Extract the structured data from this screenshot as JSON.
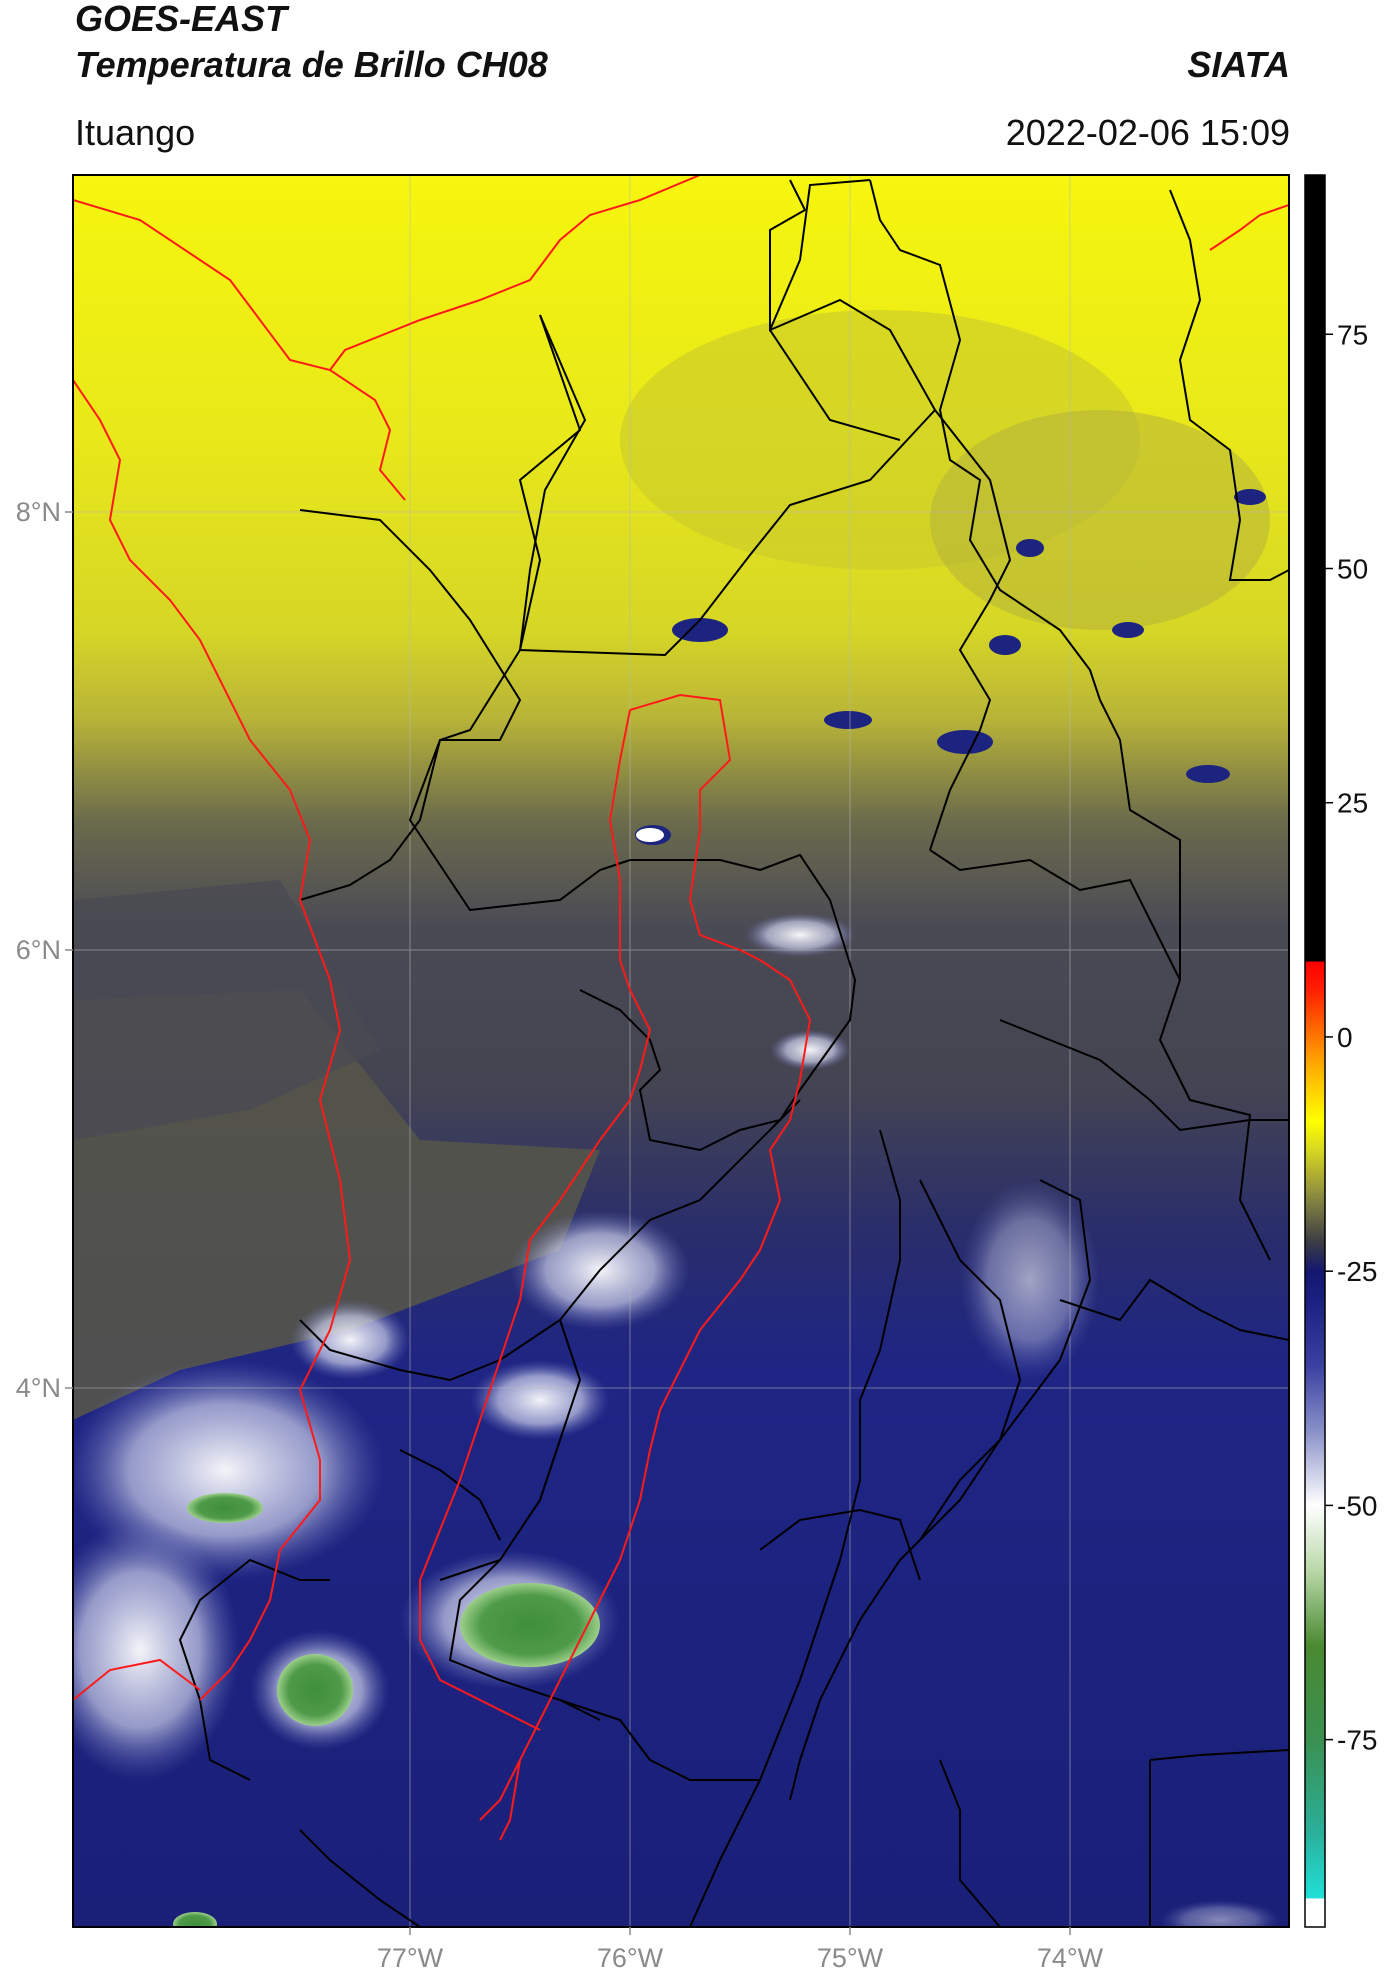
{
  "header": {
    "satellite": "GOES-EAST",
    "product": "Temperatura de Brillo CH08",
    "organization": "SIATA",
    "region": "Ituango",
    "timestamp": "2022-02-06 15:09"
  },
  "map": {
    "lon_ticks": [
      {
        "value": -77,
        "label": "77°W"
      },
      {
        "value": -76,
        "label": "76°W"
      },
      {
        "value": -75,
        "label": "75°W"
      },
      {
        "value": -74,
        "label": "74°W"
      }
    ],
    "lat_ticks": [
      {
        "value": 8,
        "label": "8°N"
      },
      {
        "value": 6,
        "label": "6°N"
      },
      {
        "value": 4,
        "label": "4°N"
      }
    ],
    "colors": {
      "land_yellow": "#e8e81a",
      "gray": "#4a4a55",
      "navy": "#1c2480",
      "boundary_black": "#000000",
      "boundary_red": "#ff1a1a"
    }
  },
  "colorbar": {
    "ticks": [
      {
        "value": 75,
        "label": "75"
      },
      {
        "value": 50,
        "label": "50"
      },
      {
        "value": 25,
        "label": "25"
      },
      {
        "value": 0,
        "label": "0"
      },
      {
        "value": -25,
        "label": "-25"
      },
      {
        "value": -50,
        "label": "-50"
      },
      {
        "value": -75,
        "label": "-75"
      }
    ],
    "stops": [
      {
        "value": -95,
        "color": "#ffffff"
      },
      {
        "value": -92,
        "color": "#ffffff"
      },
      {
        "value": -91.9,
        "color": "#20e0d8"
      },
      {
        "value": -85,
        "color": "#2ab09a"
      },
      {
        "value": -75,
        "color": "#3a9050"
      },
      {
        "value": -65,
        "color": "#4a8a30"
      },
      {
        "value": -57,
        "color": "#b8d8a8"
      },
      {
        "value": -50,
        "color": "#ffffff"
      },
      {
        "value": -42,
        "color": "#8890c8"
      },
      {
        "value": -35,
        "color": "#3a3fa0"
      },
      {
        "value": -28,
        "color": "#1a1f80"
      },
      {
        "value": -25,
        "color": "#141870"
      },
      {
        "value": -22,
        "color": "#3a3a45"
      },
      {
        "value": -17,
        "color": "#8a8a40"
      },
      {
        "value": -12,
        "color": "#d8d820"
      },
      {
        "value": -9,
        "color": "#ffff00"
      },
      {
        "value": -3,
        "color": "#ffaa00"
      },
      {
        "value": 5,
        "color": "#ff2000"
      },
      {
        "value": 8,
        "color": "#ff0000"
      },
      {
        "value": 8.1,
        "color": "#000000"
      },
      {
        "value": 92,
        "color": "#000000"
      }
    ],
    "range": [
      -95,
      92
    ]
  }
}
